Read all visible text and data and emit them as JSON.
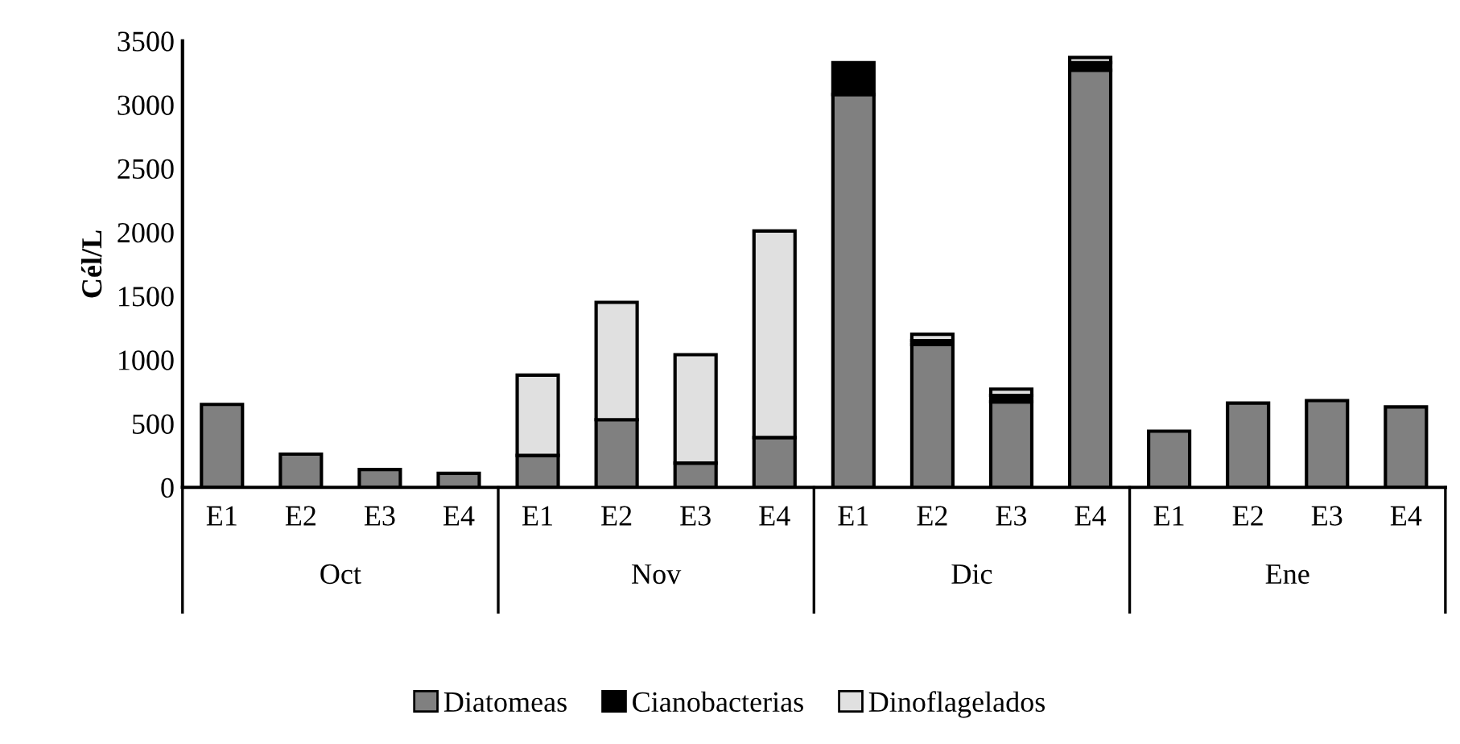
{
  "chart_data": {
    "type": "bar",
    "stacked": true,
    "ylabel": "Cél/L",
    "categories": [
      "E1",
      "E2",
      "E3",
      "E4",
      "E1",
      "E2",
      "E3",
      "E4",
      "E1",
      "E2",
      "E3",
      "E4",
      "E1",
      "E2",
      "E3",
      "E4"
    ],
    "series": [
      {
        "name": "Diatomeas",
        "color": "#808080",
        "values": [
          650,
          260,
          140,
          110,
          250,
          530,
          190,
          390,
          3080,
          1120,
          670,
          3270,
          440,
          660,
          680,
          630
        ]
      },
      {
        "name": "Cianobacterias",
        "color": "#000000",
        "values": [
          null,
          null,
          null,
          null,
          null,
          null,
          null,
          null,
          250,
          30,
          50,
          60,
          null,
          null,
          null,
          null
        ]
      },
      {
        "name": "Dinoflagelados",
        "color": "#e0e0e0",
        "values": [
          null,
          null,
          null,
          null,
          630,
          920,
          850,
          1620,
          null,
          50,
          50,
          40,
          null,
          null,
          null,
          null
        ]
      }
    ],
    "annotations": [
      "Oct",
      "Nov",
      "Dic",
      "Ene"
    ],
    "ylim": [
      0,
      3500
    ],
    "yticks": [
      0,
      500,
      1000,
      1500,
      2000,
      2500,
      3000,
      3500
    ],
    "grid": false,
    "legend": "bottom"
  }
}
